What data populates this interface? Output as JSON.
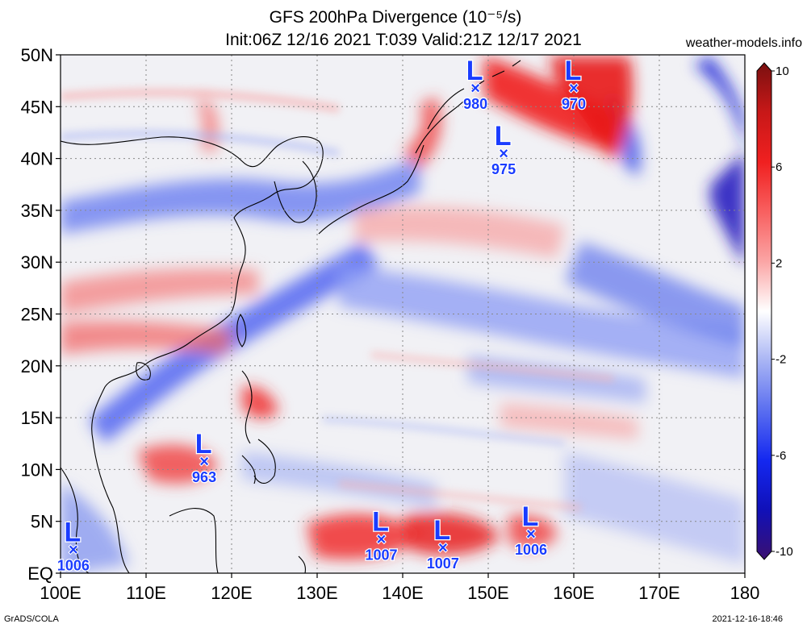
{
  "header": {
    "title_line1": "GFS 200hPa Divergence (10⁻⁵/s)",
    "title_line2": "Init:06Z 12/16 2021 T:039 Valid:21Z 12/17 2021",
    "site": "weather-models.info"
  },
  "footer": {
    "left": "GrADS/COLA",
    "right": "2021-12-16-18:46"
  },
  "map": {
    "lon_range": [
      100,
      180
    ],
    "lat_range": [
      0,
      50
    ],
    "lon_ticks": [
      {
        "value": 100,
        "label": "100E"
      },
      {
        "value": 110,
        "label": "110E"
      },
      {
        "value": 120,
        "label": "120E"
      },
      {
        "value": 130,
        "label": "130E"
      },
      {
        "value": 140,
        "label": "140E"
      },
      {
        "value": 150,
        "label": "150E"
      },
      {
        "value": 160,
        "label": "160E"
      },
      {
        "value": 170,
        "label": "170E"
      },
      {
        "value": 180,
        "label": "180"
      }
    ],
    "lat_ticks": [
      {
        "value": 0,
        "label": "EQ"
      },
      {
        "value": 5,
        "label": "5N"
      },
      {
        "value": 10,
        "label": "10N"
      },
      {
        "value": 15,
        "label": "15N"
      },
      {
        "value": 20,
        "label": "20N"
      },
      {
        "value": 25,
        "label": "25N"
      },
      {
        "value": 30,
        "label": "30N"
      },
      {
        "value": 35,
        "label": "35N"
      },
      {
        "value": 40,
        "label": "40N"
      },
      {
        "value": 45,
        "label": "45N"
      },
      {
        "value": 50,
        "label": "50N"
      }
    ],
    "grid": true,
    "lows": [
      {
        "lon": 148.5,
        "lat": 46.8,
        "pressure": "980"
      },
      {
        "lon": 160.0,
        "lat": 46.8,
        "pressure": "970"
      },
      {
        "lon": 151.8,
        "lat": 40.5,
        "pressure": "975"
      },
      {
        "lon": 116.8,
        "lat": 10.8,
        "pressure": "963"
      },
      {
        "lon": 101.5,
        "lat": 2.3,
        "pressure": "1006"
      },
      {
        "lon": 137.5,
        "lat": 3.3,
        "pressure": "1007"
      },
      {
        "lon": 144.7,
        "lat": 2.5,
        "pressure": "1007"
      },
      {
        "lon": 155.0,
        "lat": 3.8,
        "pressure": "1006"
      }
    ],
    "colors": {
      "divergence_strong": "#e82020",
      "divergence_weak": "#f7b5b5",
      "convergence_strong": "#2030e0",
      "convergence_weak": "#b9c3f5",
      "neutral": "#f4f4f6",
      "low_marker": "#1a3cff"
    }
  },
  "colorbar": {
    "range": [
      -10,
      10
    ],
    "labels": [
      {
        "value": 10,
        "label": "10"
      },
      {
        "value": 6,
        "label": "6"
      },
      {
        "value": 2,
        "label": "2"
      },
      {
        "value": -2,
        "label": "-2"
      },
      {
        "value": -6,
        "label": "-6"
      },
      {
        "value": -10,
        "label": "-10"
      }
    ],
    "stops": [
      {
        "value": 10,
        "color": "#7a1010"
      },
      {
        "value": 8,
        "color": "#c81818"
      },
      {
        "value": 6,
        "color": "#f02020"
      },
      {
        "value": 4,
        "color": "#f86060"
      },
      {
        "value": 2,
        "color": "#fba5a5"
      },
      {
        "value": 0,
        "color": "#ffffff"
      },
      {
        "value": -2,
        "color": "#a8b4f4"
      },
      {
        "value": -4,
        "color": "#5a6ef0"
      },
      {
        "value": -6,
        "color": "#1428f0"
      },
      {
        "value": -8,
        "color": "#1010b8"
      },
      {
        "value": -10,
        "color": "#3a1070"
      }
    ]
  }
}
